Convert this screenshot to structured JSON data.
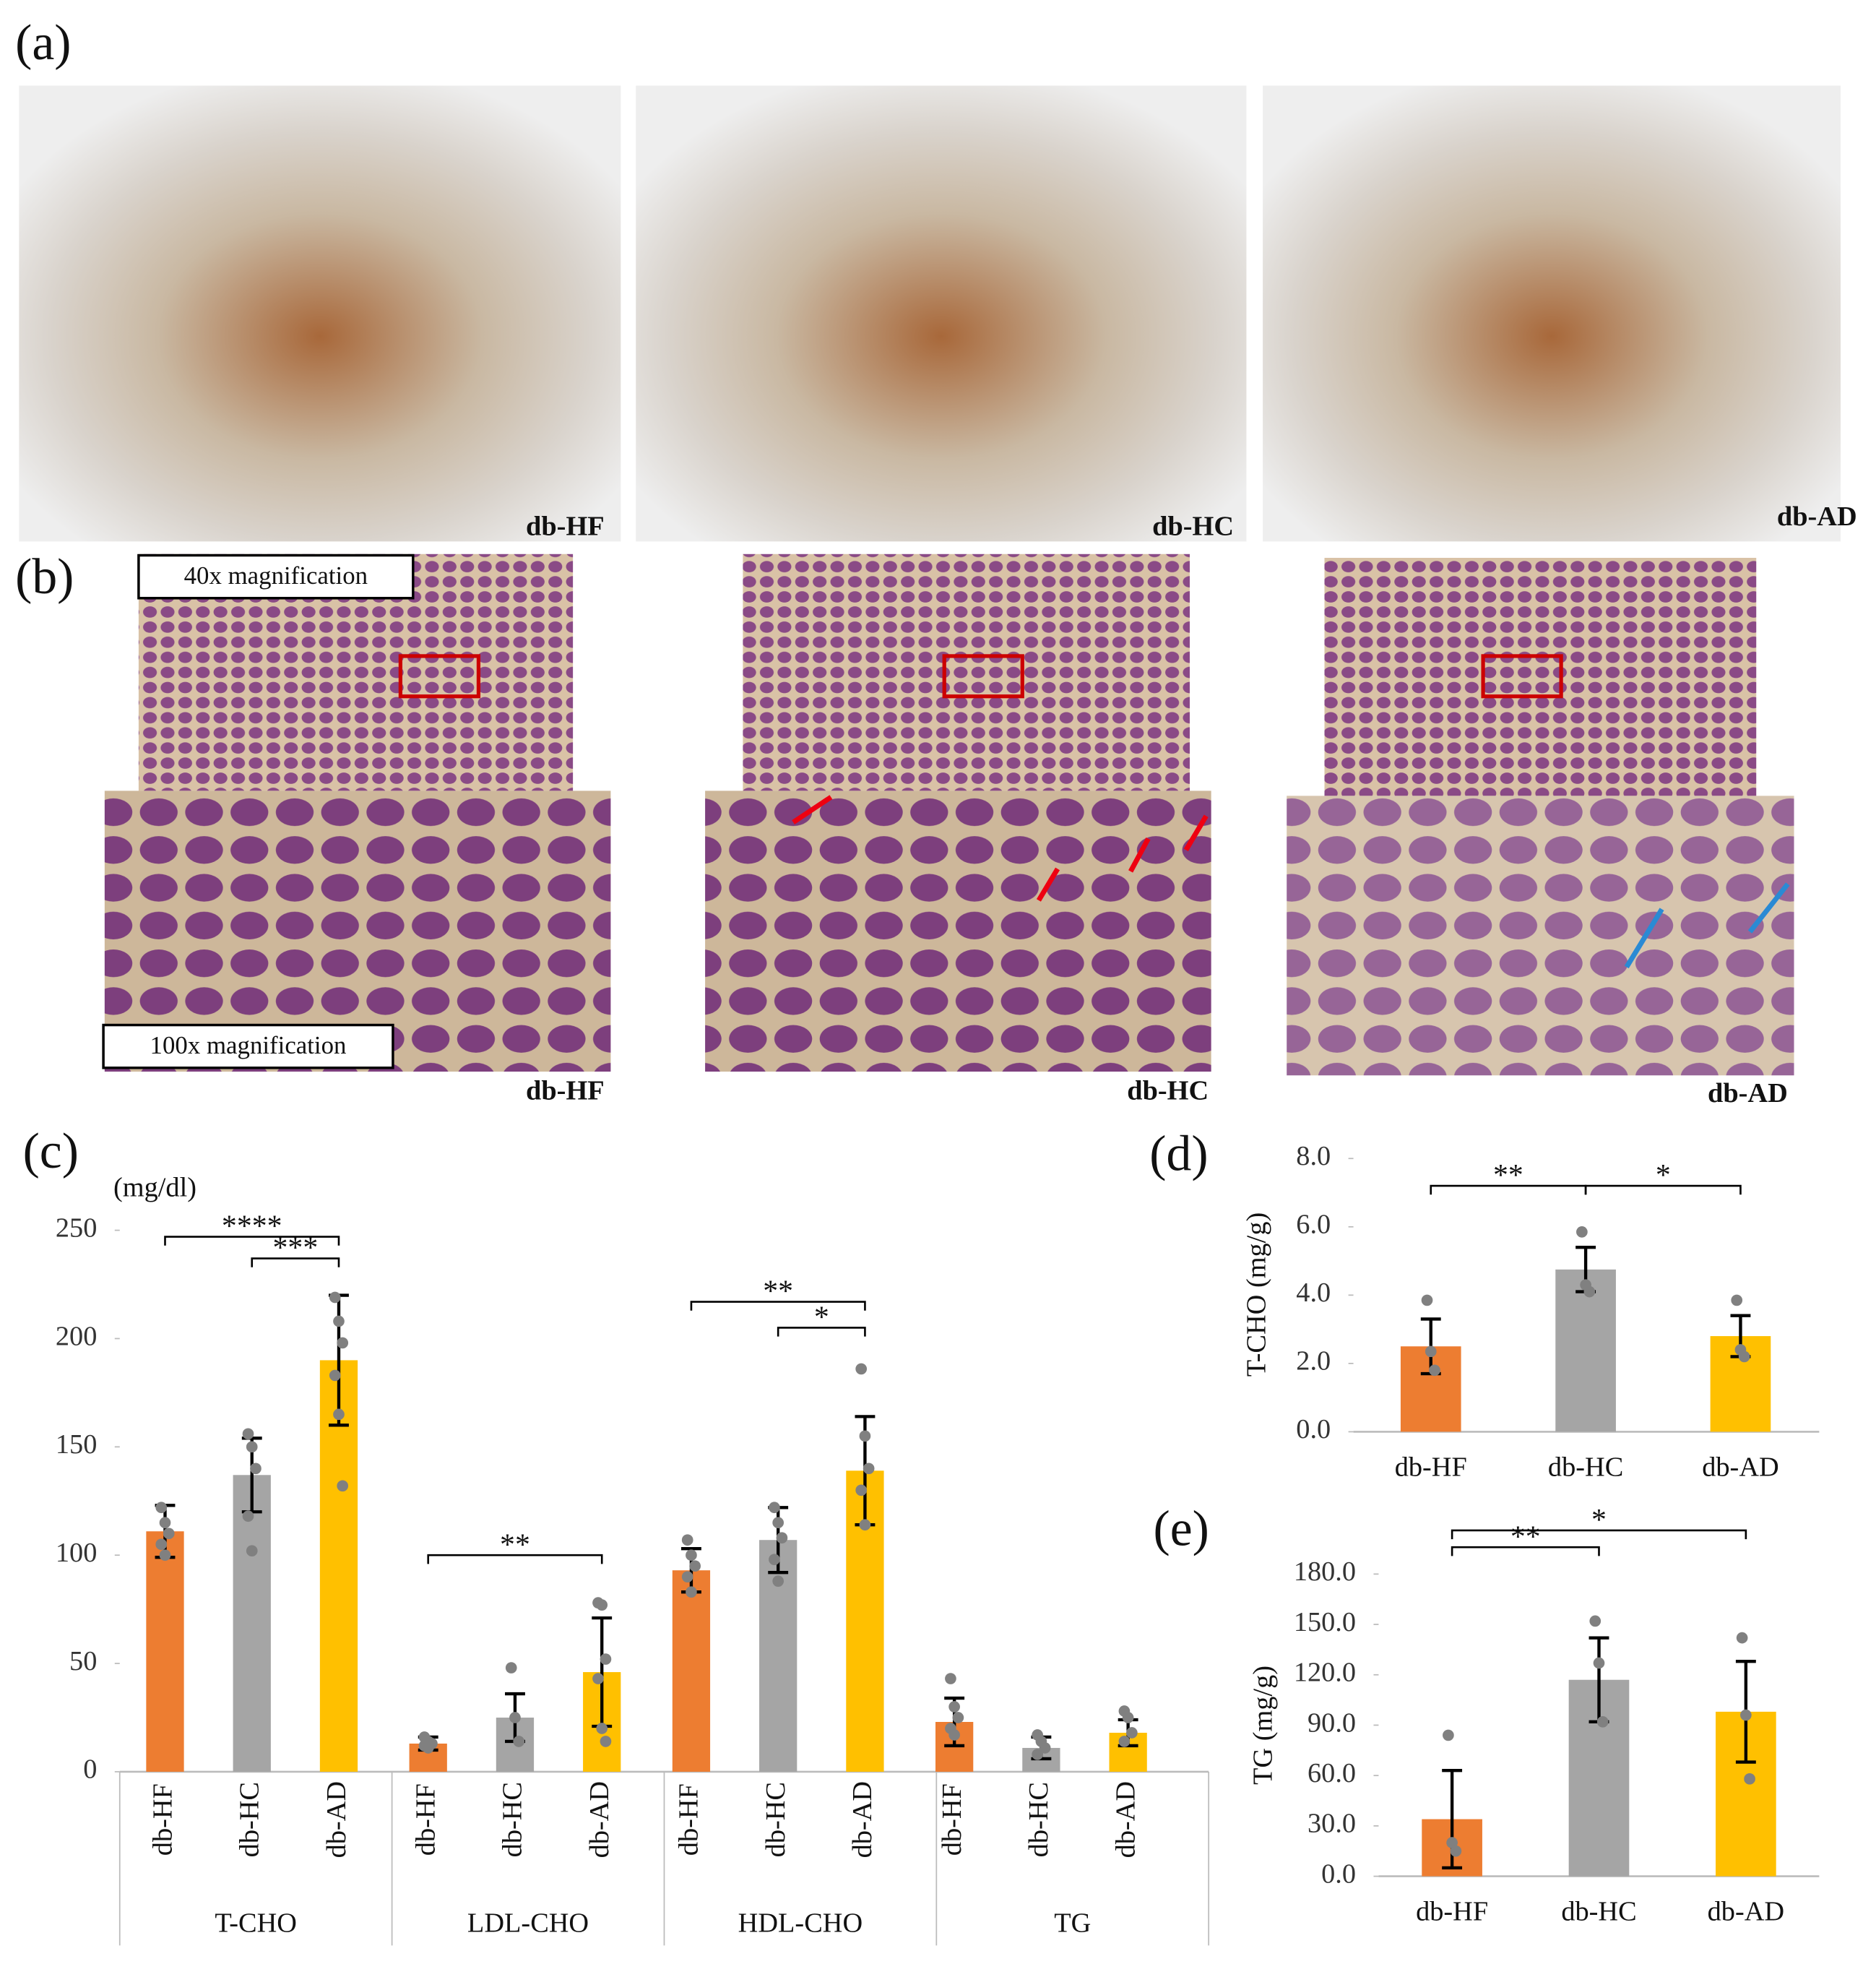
{
  "photos": {
    "label": "(a)",
    "captions": [
      "db-HF",
      "db-HC",
      "db-AD"
    ]
  },
  "histology": {
    "label": "(b)",
    "captions": [
      "db-HF",
      "db-HC",
      "db-AD"
    ],
    "inset_labels": [
      "40x magnification",
      "100x magnification"
    ]
  },
  "chart_data": [
    {
      "type": "bar",
      "label": "(c)",
      "y_unit": "(mg/dl)",
      "categories": [
        "T-CHO",
        "LDL-CHO",
        "HDL-CHO",
        "TG"
      ],
      "ylim": [
        0,
        250
      ],
      "yticks": [
        0,
        50,
        100,
        150,
        200,
        250
      ],
      "series": [
        {
          "name": "db-HF",
          "color": "#ED7D31",
          "values": [
            111,
            13,
            93,
            23
          ],
          "errors": [
            12,
            3,
            10,
            11
          ],
          "points": [
            [
              122,
              115,
              110,
              105,
              100
            ],
            [
              16,
              14,
              13,
              12,
              11
            ],
            [
              107,
              100,
              95,
              90,
              83
            ],
            [
              43,
              30,
              25,
              20,
              17
            ]
          ]
        },
        {
          "name": "db-HC",
          "color": "#A5A5A5",
          "values": [
            137,
            25,
            107,
            11
          ],
          "errors": [
            17,
            11,
            15,
            5
          ],
          "points": [
            [
              156,
              150,
              140,
              118,
              102
            ],
            [
              48,
              25,
              14
            ],
            [
              122,
              115,
              108,
              98,
              88
            ],
            [
              17,
              14,
              11,
              8
            ]
          ]
        },
        {
          "name": "db-AD",
          "color": "#FFC000",
          "values": [
            190,
            46,
            139,
            18
          ],
          "errors": [
            30,
            25,
            25,
            6
          ],
          "points": [
            [
              219,
              208,
              198,
              183,
              165,
              132
            ],
            [
              78,
              77,
              52,
              43,
              20,
              14
            ],
            [
              186,
              155,
              140,
              130,
              114
            ],
            [
              28,
              25,
              18,
              14
            ]
          ]
        }
      ],
      "annotations": [
        {
          "label": "****",
          "group": 0,
          "from": 0,
          "to": 2,
          "y": 247
        },
        {
          "label": "***",
          "group": 0,
          "from": 1,
          "to": 2,
          "y": 237
        },
        {
          "label": "**",
          "group": 1,
          "from": 0,
          "to": 2,
          "y": 100
        },
        {
          "label": "**",
          "group": 2,
          "from": 0,
          "to": 2,
          "y": 217
        },
        {
          "label": "*",
          "group": 2,
          "from": 1,
          "to": 2,
          "y": 205
        }
      ]
    },
    {
      "type": "bar",
      "label": "(d)",
      "y_label": "T-CHO (mg/g)",
      "categories": [
        "db-HF",
        "db-HC",
        "db-AD"
      ],
      "colors": [
        "#ED7D31",
        "#A5A5A5",
        "#FFC000"
      ],
      "values": [
        2.5,
        4.75,
        2.8
      ],
      "errors": [
        0.8,
        0.65,
        0.6
      ],
      "points": [
        [
          3.85,
          2.35,
          1.8
        ],
        [
          5.85,
          4.3,
          4.1
        ],
        [
          3.85,
          2.4,
          2.2
        ]
      ],
      "ylim": [
        0,
        8
      ],
      "yticks": [
        {
          "value": 0,
          "label": "0.0"
        },
        {
          "value": 2,
          "label": "2.0"
        },
        {
          "value": 4,
          "label": "4.0"
        },
        {
          "value": 6,
          "label": "6.0"
        },
        {
          "value": 8,
          "label": "8.0"
        }
      ],
      "annotations": [
        {
          "label": "**",
          "from": 0,
          "to": 1,
          "y": 7.2
        },
        {
          "label": "*",
          "from": 1,
          "to": 2,
          "y": 7.2
        }
      ]
    },
    {
      "type": "bar",
      "label": "(e)",
      "y_label": "TG (mg/g)",
      "categories": [
        "db-HF",
        "db-HC",
        "db-AD"
      ],
      "colors": [
        "#ED7D31",
        "#A5A5A5",
        "#FFC000"
      ],
      "values": [
        34,
        117,
        98
      ],
      "errors": [
        29,
        25,
        30
      ],
      "points": [
        [
          84,
          20,
          15
        ],
        [
          152,
          127,
          92
        ],
        [
          142,
          96,
          58
        ]
      ],
      "ylim": [
        0,
        180
      ],
      "yticks": [
        {
          "value": 0,
          "label": "0.0"
        },
        {
          "value": 30,
          "label": "30.0"
        },
        {
          "value": 60,
          "label": "60.0"
        },
        {
          "value": 90,
          "label": "90.0"
        },
        {
          "value": 120,
          "label": "120.0"
        },
        {
          "value": 150,
          "label": "150.0"
        },
        {
          "value": 180,
          "label": "180.0"
        }
      ],
      "annotations": [
        {
          "label": "**",
          "from": 0,
          "to": 1,
          "y": 196
        },
        {
          "label": "*",
          "from": 0,
          "to": 2,
          "y": 206
        }
      ]
    }
  ]
}
